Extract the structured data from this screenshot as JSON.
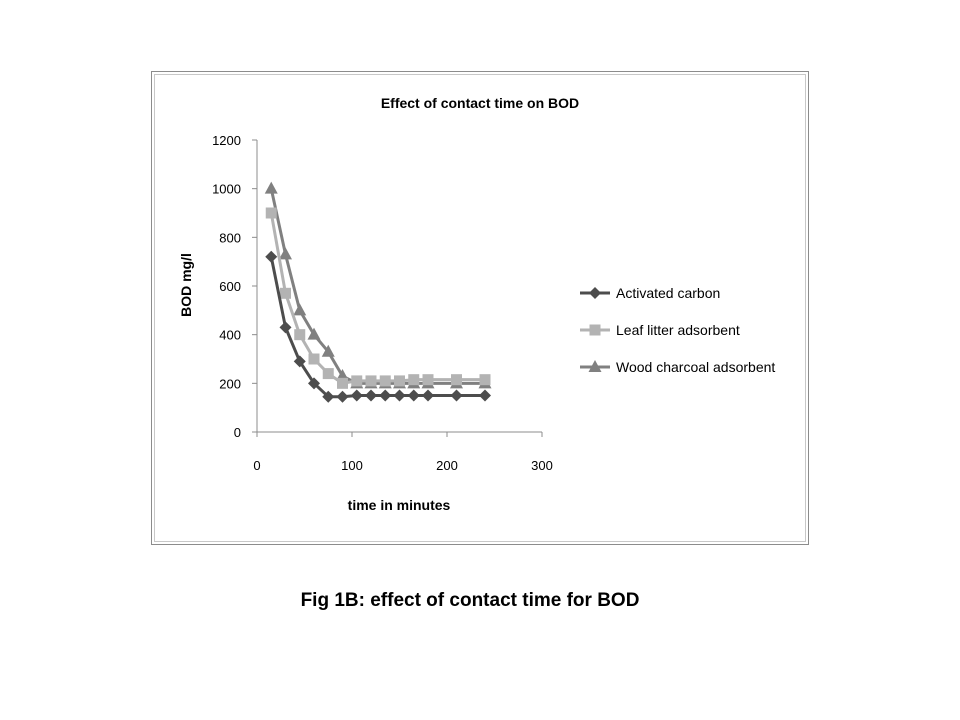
{
  "figure_caption": "Fig 1B: effect of contact time for BOD",
  "chart_data": {
    "type": "line",
    "title": "Effect of contact  time on BOD",
    "xlabel": "time in minutes",
    "ylabel": "BOD mg/l",
    "xlim": [
      0,
      300
    ],
    "ylim": [
      0,
      1200
    ],
    "xticks": [
      0,
      100,
      200,
      300
    ],
    "yticks": [
      0,
      200,
      400,
      600,
      800,
      1000,
      1200
    ],
    "grid": false,
    "legend_position": "right",
    "series": [
      {
        "name": "Activated carbon",
        "marker": "diamond",
        "color": "#4d4d4d",
        "x": [
          15,
          30,
          45,
          60,
          75,
          90,
          105,
          120,
          135,
          150,
          165,
          180,
          210,
          240
        ],
        "y": [
          720,
          430,
          290,
          200,
          145,
          145,
          150,
          150,
          150,
          150,
          150,
          150,
          150,
          150
        ]
      },
      {
        "name": "Leaf litter adsorbent",
        "marker": "square",
        "color": "#b3b3b3",
        "x": [
          15,
          30,
          45,
          60,
          75,
          90,
          105,
          120,
          135,
          150,
          165,
          180,
          210,
          240
        ],
        "y": [
          900,
          570,
          400,
          300,
          240,
          200,
          210,
          210,
          210,
          210,
          215,
          215,
          215,
          215
        ]
      },
      {
        "name": "Wood charcoal adsorbent",
        "marker": "triangle",
        "color": "#808080",
        "x": [
          15,
          30,
          45,
          60,
          75,
          90,
          105,
          120,
          135,
          150,
          165,
          180,
          210,
          240
        ],
        "y": [
          1000,
          730,
          500,
          400,
          330,
          230,
          200,
          200,
          200,
          200,
          200,
          200,
          200,
          200
        ]
      }
    ]
  }
}
